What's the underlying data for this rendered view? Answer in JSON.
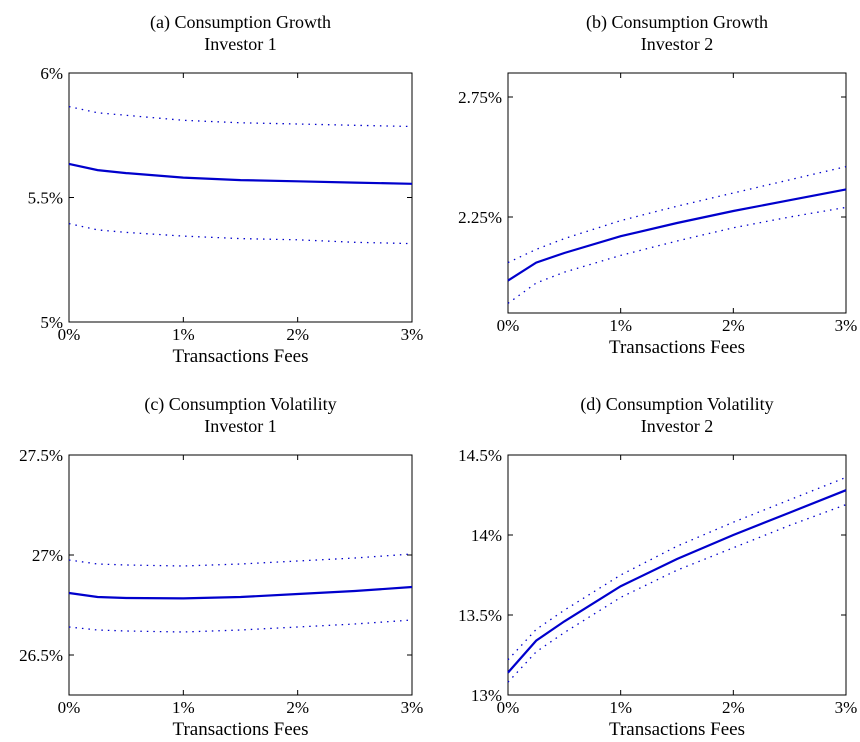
{
  "chart_data": [
    {
      "type": "line",
      "title": "(a) Consumption Growth",
      "subtitle": "Investor 1",
      "xlabel": "Transactions Fees",
      "ylabel": "",
      "xlim": [
        0,
        3
      ],
      "ylim": [
        5.0,
        6.0
      ],
      "xticks": [
        0,
        1,
        2,
        3
      ],
      "xtick_labels": [
        "0%",
        "1%",
        "2%",
        "3%"
      ],
      "yticks": [
        5.0,
        5.5,
        6.0
      ],
      "ytick_labels": [
        "5%",
        "5.5%",
        "6%"
      ],
      "grid": false,
      "x": [
        0,
        0.25,
        0.5,
        1,
        1.5,
        2,
        2.5,
        3
      ],
      "series": [
        {
          "style": "solid",
          "values": [
            5.635,
            5.61,
            5.598,
            5.58,
            5.57,
            5.565,
            5.56,
            5.555
          ]
        },
        {
          "style": "dotted",
          "values": [
            5.865,
            5.84,
            5.83,
            5.81,
            5.8,
            5.795,
            5.79,
            5.785
          ]
        },
        {
          "style": "dotted",
          "values": [
            5.395,
            5.37,
            5.36,
            5.345,
            5.335,
            5.33,
            5.32,
            5.315
          ]
        }
      ]
    },
    {
      "type": "line",
      "title": "(b) Consumption Growth",
      "subtitle": "Investor 2",
      "xlabel": "Transactions Fees",
      "ylabel": "",
      "xlim": [
        0,
        3
      ],
      "ylim": [
        1.85,
        2.85
      ],
      "xticks": [
        0,
        1,
        2,
        3
      ],
      "xtick_labels": [
        "0%",
        "1%",
        "2%",
        "3%"
      ],
      "yticks": [
        2.25,
        2.75
      ],
      "ytick_labels": [
        "2.25%",
        "2.75%"
      ],
      "grid": false,
      "x": [
        0,
        0.25,
        0.5,
        1,
        1.5,
        2,
        2.5,
        3
      ],
      "series": [
        {
          "style": "solid",
          "values": [
            1.985,
            2.06,
            2.1,
            2.17,
            2.225,
            2.275,
            2.32,
            2.365
          ]
        },
        {
          "style": "dotted",
          "values": [
            2.06,
            2.115,
            2.16,
            2.235,
            2.295,
            2.35,
            2.405,
            2.46
          ]
        },
        {
          "style": "dotted",
          "values": [
            1.89,
            1.975,
            2.02,
            2.09,
            2.15,
            2.205,
            2.25,
            2.29
          ]
        }
      ]
    },
    {
      "type": "line",
      "title": "(c) Consumption Volatility",
      "subtitle": "Investor 1",
      "xlabel": "Transactions Fees",
      "ylabel": "",
      "xlim": [
        0,
        3
      ],
      "ylim": [
        26.3,
        27.5
      ],
      "xticks": [
        0,
        1,
        2,
        3
      ],
      "xtick_labels": [
        "0%",
        "1%",
        "2%",
        "3%"
      ],
      "yticks": [
        26.5,
        27.0,
        27.5
      ],
      "ytick_labels": [
        "26.5%",
        "27%",
        "27.5%"
      ],
      "grid": false,
      "x": [
        0,
        0.25,
        0.5,
        1,
        1.5,
        2,
        2.5,
        3
      ],
      "series": [
        {
          "style": "solid",
          "values": [
            26.81,
            26.79,
            26.785,
            26.783,
            26.79,
            26.805,
            26.82,
            26.84
          ]
        },
        {
          "style": "dotted",
          "values": [
            26.975,
            26.955,
            26.95,
            26.945,
            26.955,
            26.97,
            26.985,
            27.005
          ]
        },
        {
          "style": "dotted",
          "values": [
            26.64,
            26.625,
            26.62,
            26.615,
            26.625,
            26.64,
            26.655,
            26.675
          ]
        }
      ]
    },
    {
      "type": "line",
      "title": "(d) Consumption Volatility",
      "subtitle": "Investor 2",
      "xlabel": "Transactions Fees",
      "ylabel": "",
      "xlim": [
        0,
        3
      ],
      "ylim": [
        13.0,
        14.5
      ],
      "xticks": [
        0,
        1,
        2,
        3
      ],
      "xtick_labels": [
        "0%",
        "1%",
        "2%",
        "3%"
      ],
      "yticks": [
        13.0,
        13.5,
        14.0,
        14.5
      ],
      "ytick_labels": [
        "13%",
        "13.5%",
        "14%",
        "14.5%"
      ],
      "grid": false,
      "x": [
        0,
        0.25,
        0.5,
        1,
        1.5,
        2,
        2.5,
        3
      ],
      "series": [
        {
          "style": "solid",
          "values": [
            13.14,
            13.34,
            13.46,
            13.68,
            13.85,
            14.0,
            14.14,
            14.28
          ]
        },
        {
          "style": "dotted",
          "values": [
            13.22,
            13.41,
            13.53,
            13.75,
            13.93,
            14.08,
            14.22,
            14.36
          ]
        },
        {
          "style": "dotted",
          "values": [
            13.08,
            13.27,
            13.39,
            13.61,
            13.78,
            13.92,
            14.06,
            14.19
          ]
        }
      ]
    }
  ],
  "colors": {
    "line": "#0000cc",
    "axis": "#000000"
  }
}
